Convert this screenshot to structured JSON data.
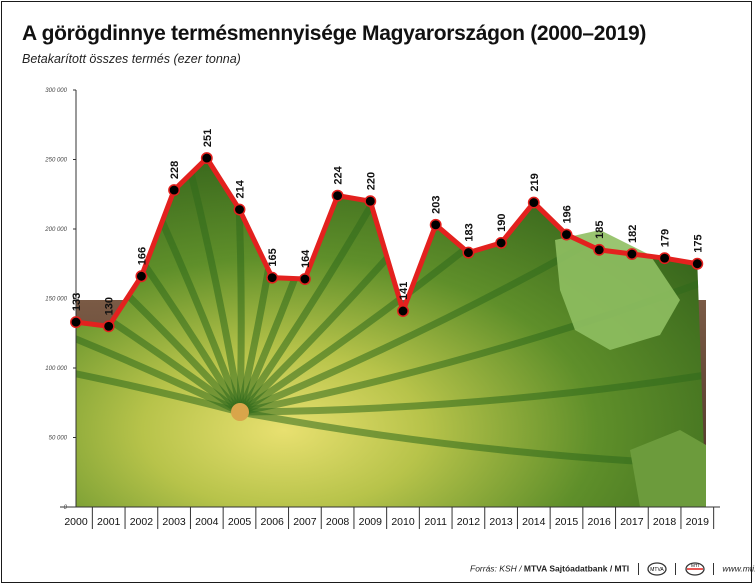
{
  "title": "A görögdinnye termésmennyisége Magyarországon (2000–2019)",
  "subtitle": "Betakarított összes termés (ezer tonna)",
  "footer": {
    "source": "Forrás: KSH /",
    "publisher": "MTVA Sajtóadatbank / MTI",
    "logo_mtva_text": "MTVA",
    "logo_mti_text": "MTI",
    "url": "www.mti.hu"
  },
  "colors": {
    "line": "#e3211e",
    "marker": "#000000",
    "axis": "#333333"
  },
  "chart_data": {
    "type": "line",
    "title": "A görögdinnye termésmennyisége Magyarországon (2000–2019)",
    "subtitle": "Betakarított összes termés (ezer tonna)",
    "xlabel": "",
    "ylabel": "",
    "ylim": [
      0,
      300000
    ],
    "yticks": [
      0,
      50000,
      100000,
      150000,
      200000,
      250000,
      300000
    ],
    "ytick_labels": [
      "0",
      "50 000",
      "100 000",
      "150 000",
      "200 000",
      "250 000",
      "300 000"
    ],
    "categories": [
      "2000",
      "2001",
      "2002",
      "2003",
      "2004",
      "2005",
      "2006",
      "2007",
      "2008",
      "2009",
      "2010",
      "2011",
      "2012",
      "2013",
      "2014",
      "2015",
      "2016",
      "2017",
      "2018",
      "2019"
    ],
    "values": [
      133000,
      130000,
      166000,
      228000,
      251000,
      214000,
      165000,
      164000,
      224000,
      220000,
      141000,
      203000,
      183000,
      190000,
      219000,
      196000,
      185000,
      182000,
      179000,
      175000
    ],
    "data_labels": [
      "133",
      "130",
      "166",
      "228",
      "251",
      "214",
      "165",
      "164",
      "224",
      "220",
      "141",
      "203",
      "183",
      "190",
      "219",
      "196",
      "185",
      "182",
      "179",
      "175"
    ],
    "grid": false,
    "legend": "none",
    "background": "watermelon-photo"
  }
}
